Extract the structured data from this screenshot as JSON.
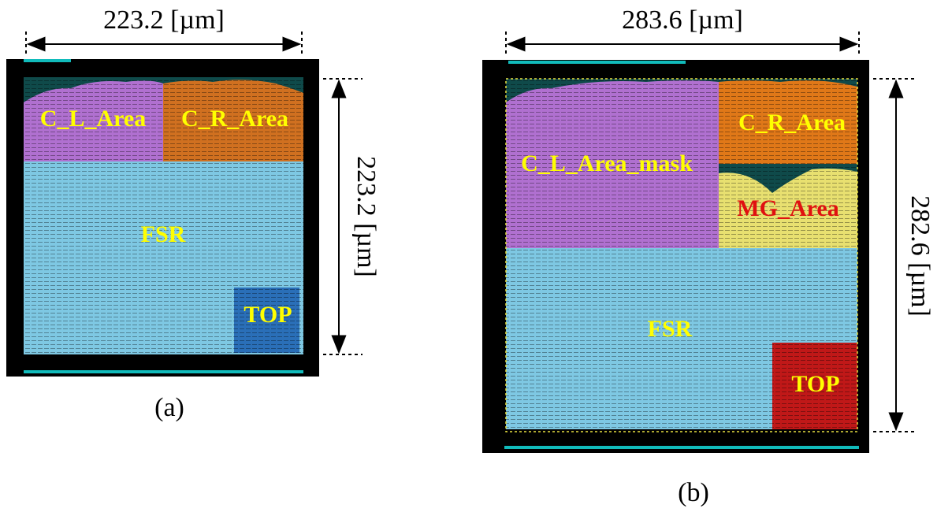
{
  "panels": [
    {
      "width_label": "223.2 [µm]",
      "height_label": "223.2 [µm]",
      "caption": "(a)",
      "regions": [
        "C_L_Area",
        "C_R_Area",
        "FSR",
        "TOP"
      ]
    },
    {
      "width_label": "283.6 [µm]",
      "height_label": "282.6 [µm]",
      "caption": "(b)",
      "regions": [
        "C_L_Area_mask",
        "C_R_Area",
        "MG_Area",
        "FSR",
        "TOP"
      ]
    }
  ]
}
